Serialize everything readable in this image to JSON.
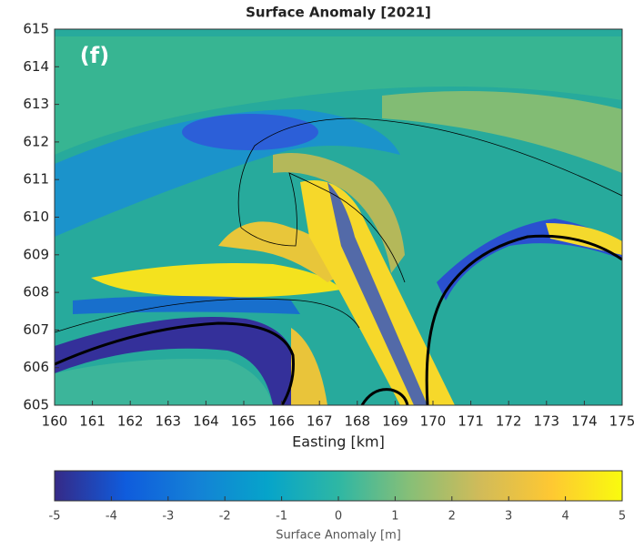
{
  "chart_data": {
    "type": "heatmap",
    "title": "Surface Anomaly [2021]",
    "annotation": "(f)",
    "x_label": "Easting [km]",
    "xlim": [
      160,
      175
    ],
    "xticks": [
      160,
      161,
      162,
      163,
      164,
      165,
      166,
      167,
      168,
      169,
      170,
      171,
      172,
      173,
      174,
      175
    ],
    "ylim": [
      605,
      615
    ],
    "yticks": [
      605,
      606,
      607,
      608,
      609,
      610,
      611,
      612,
      613,
      614,
      615
    ],
    "colorbar": {
      "label": "Surface Anomaly [m]",
      "lim": [
        -5,
        5
      ],
      "ticks": [
        -5,
        -4,
        -3,
        -2,
        -1,
        0,
        1,
        2,
        3,
        4,
        5
      ],
      "colors": [
        "#352a87",
        "#0f5cdd",
        "#1481d6",
        "#06a4ca",
        "#2eb7a4",
        "#87bf77",
        "#d1bb59",
        "#fec832",
        "#f9fb0e"
      ]
    }
  }
}
